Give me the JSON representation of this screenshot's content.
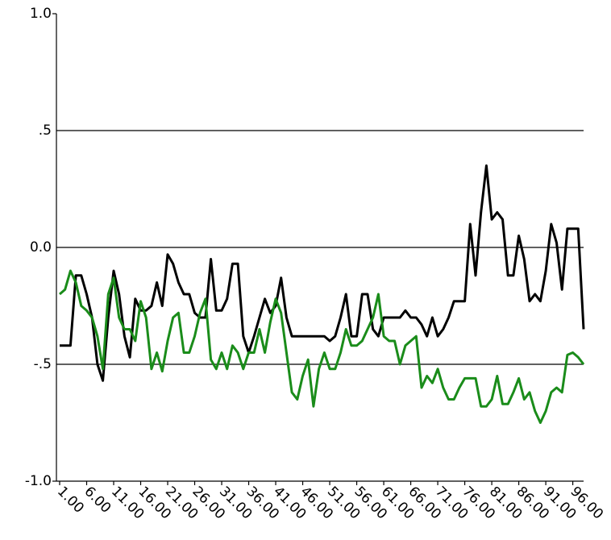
{
  "chart_data": {
    "type": "line",
    "x": [
      1,
      2,
      3,
      4,
      5,
      6,
      7,
      8,
      9,
      10,
      11,
      12,
      13,
      14,
      15,
      16,
      17,
      18,
      19,
      20,
      21,
      22,
      23,
      24,
      25,
      26,
      27,
      28,
      29,
      30,
      31,
      32,
      33,
      34,
      35,
      36,
      37,
      38,
      39,
      40,
      41,
      42,
      43,
      44,
      45,
      46,
      47,
      48,
      49,
      50,
      51,
      52,
      53,
      54,
      55,
      56,
      57,
      58,
      59,
      60,
      61,
      62,
      63,
      64,
      65,
      66,
      67,
      68,
      69,
      70,
      71,
      72,
      73,
      74,
      75,
      76,
      77,
      78,
      79,
      80,
      81,
      82,
      83,
      84,
      85,
      86,
      87,
      88,
      89,
      90,
      91,
      92,
      93,
      94,
      95,
      96,
      97,
      98
    ],
    "series": [
      {
        "color": "#000000",
        "values": [
          -0.42,
          -0.42,
          -0.42,
          -0.12,
          -0.12,
          -0.2,
          -0.3,
          -0.5,
          -0.57,
          -0.3,
          -0.1,
          -0.2,
          -0.38,
          -0.47,
          -0.22,
          -0.27,
          -0.27,
          -0.25,
          -0.15,
          -0.25,
          -0.03,
          -0.07,
          -0.15,
          -0.2,
          -0.2,
          -0.28,
          -0.3,
          -0.3,
          -0.05,
          -0.27,
          -0.27,
          -0.22,
          -0.07,
          -0.07,
          -0.38,
          -0.45,
          -0.38,
          -0.3,
          -0.22,
          -0.28,
          -0.25,
          -0.13,
          -0.3,
          -0.38,
          -0.38,
          -0.38,
          -0.38,
          -0.38,
          -0.38,
          -0.38,
          -0.4,
          -0.38,
          -0.3,
          -0.2,
          -0.38,
          -0.38,
          -0.2,
          -0.2,
          -0.35,
          -0.38,
          -0.3,
          -0.3,
          -0.3,
          -0.3,
          -0.27,
          -0.3,
          -0.3,
          -0.33,
          -0.38,
          -0.3,
          -0.38,
          -0.35,
          -0.3,
          -0.23,
          -0.23,
          -0.23,
          0.1,
          -0.12,
          0.15,
          0.35,
          0.12,
          0.15,
          0.12,
          -0.12,
          -0.12,
          0.05,
          -0.05,
          -0.23,
          -0.2,
          -0.23,
          -0.1,
          0.1,
          0.02,
          -0.18,
          0.08,
          0.08,
          0.08,
          -0.35
        ]
      },
      {
        "color": "#1a8c1a",
        "values": [
          -0.2,
          -0.18,
          -0.1,
          -0.15,
          -0.25,
          -0.27,
          -0.3,
          -0.38,
          -0.52,
          -0.2,
          -0.13,
          -0.3,
          -0.35,
          -0.35,
          -0.4,
          -0.23,
          -0.3,
          -0.52,
          -0.45,
          -0.53,
          -0.4,
          -0.3,
          -0.28,
          -0.45,
          -0.45,
          -0.38,
          -0.28,
          -0.22,
          -0.48,
          -0.52,
          -0.45,
          -0.52,
          -0.42,
          -0.45,
          -0.52,
          -0.45,
          -0.45,
          -0.35,
          -0.45,
          -0.32,
          -0.22,
          -0.28,
          -0.45,
          -0.62,
          -0.65,
          -0.55,
          -0.48,
          -0.68,
          -0.52,
          -0.45,
          -0.52,
          -0.52,
          -0.45,
          -0.35,
          -0.42,
          -0.42,
          -0.4,
          -0.35,
          -0.3,
          -0.2,
          -0.38,
          -0.4,
          -0.4,
          -0.5,
          -0.42,
          -0.4,
          -0.38,
          -0.6,
          -0.55,
          -0.58,
          -0.52,
          -0.6,
          -0.65,
          -0.65,
          -0.6,
          -0.56,
          -0.56,
          -0.56,
          -0.68,
          -0.68,
          -0.65,
          -0.55,
          -0.67,
          -0.67,
          -0.62,
          -0.56,
          -0.65,
          -0.62,
          -0.7,
          -0.75,
          -0.7,
          -0.62,
          -0.6,
          -0.62,
          -0.46,
          -0.45,
          -0.47,
          -0.5
        ]
      }
    ],
    "xlim": [
      1,
      98
    ],
    "xticks": [
      {
        "value": 1,
        "label": "1.00"
      },
      {
        "value": 6,
        "label": "6.00"
      },
      {
        "value": 11,
        "label": "11.00"
      },
      {
        "value": 16,
        "label": "16.00"
      },
      {
        "value": 21,
        "label": "21.00"
      },
      {
        "value": 26,
        "label": "26.00"
      },
      {
        "value": 31,
        "label": "31.00"
      },
      {
        "value": 36,
        "label": "36.00"
      },
      {
        "value": 41,
        "label": "41.00"
      },
      {
        "value": 46,
        "label": "46.00"
      },
      {
        "value": 51,
        "label": "51.00"
      },
      {
        "value": 56,
        "label": "56.00"
      },
      {
        "value": 61,
        "label": "61.00"
      },
      {
        "value": 66,
        "label": "66.00"
      },
      {
        "value": 71,
        "label": "71.00"
      },
      {
        "value": 76,
        "label": "76.00"
      },
      {
        "value": 81,
        "label": "81.00"
      },
      {
        "value": 86,
        "label": "86.00"
      },
      {
        "value": 91,
        "label": "91.00"
      },
      {
        "value": 96,
        "label": "96.00"
      }
    ],
    "ylim": [
      -1,
      1
    ],
    "yticks": [
      {
        "value": -1,
        "label": "-1.0"
      },
      {
        "value": -0.5,
        "label": "-.5"
      },
      {
        "value": 0,
        "label": "0.0"
      },
      {
        "value": 0.5,
        "label": ".5"
      },
      {
        "value": 1,
        "label": "1.0"
      }
    ],
    "grid": true
  }
}
